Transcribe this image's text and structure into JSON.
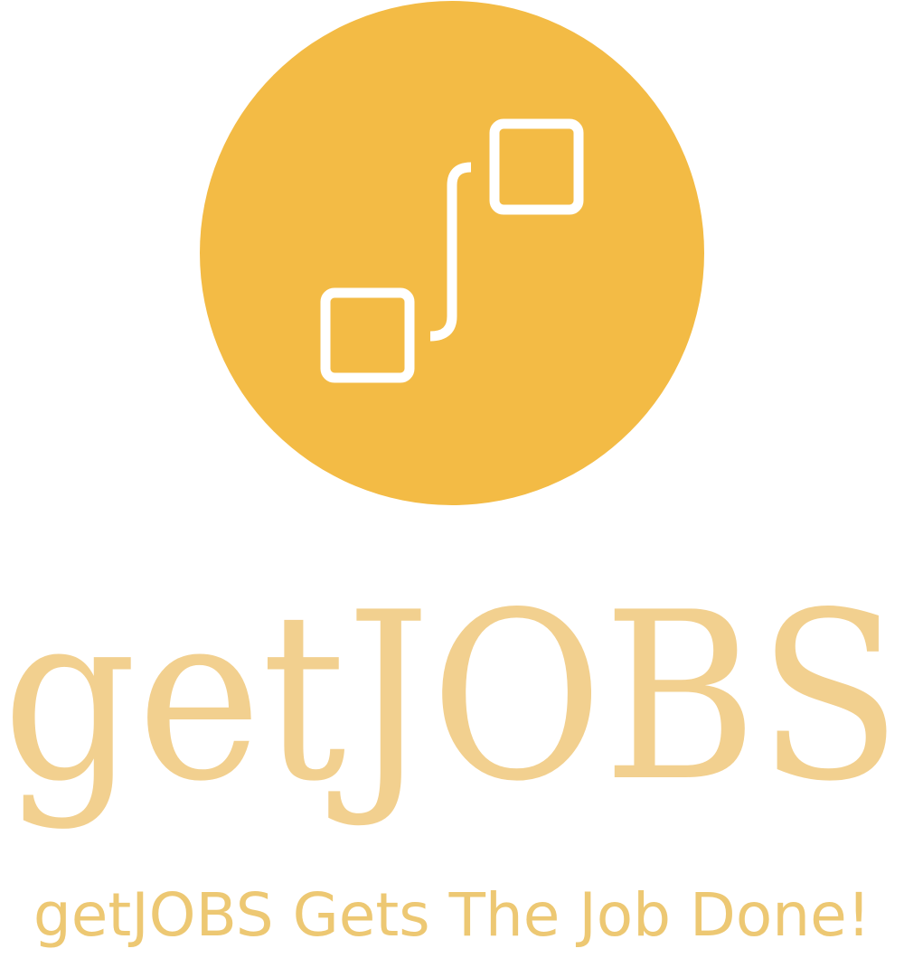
{
  "brand": {
    "name": "getJOBS",
    "tagline": "getJOBS Gets The Job Done!"
  },
  "colors": {
    "circle": "#F3BB45",
    "mark_stroke": "#FFFFFF",
    "wordmark": "#F2D08F",
    "tagline": "#EDC873",
    "background": "#FFFFFF"
  },
  "icons": {
    "logo": "connected-squares-icon"
  }
}
